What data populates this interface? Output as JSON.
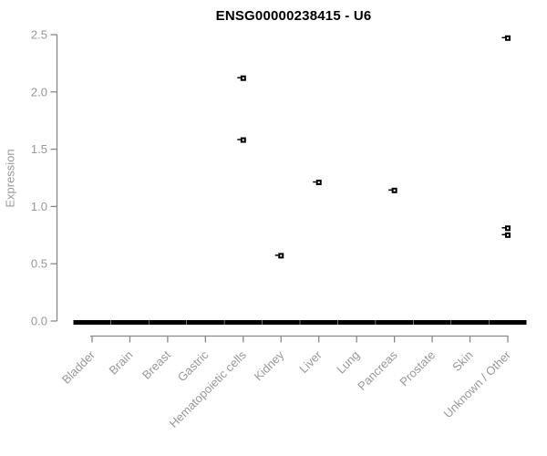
{
  "chart_data": {
    "type": "scatter",
    "title": "ENSG00000238415 - U6",
    "xlabel": "",
    "ylabel": "Expression",
    "ylim": [
      0.0,
      2.5
    ],
    "y_ticks": [
      "0.0",
      "0.5",
      "1.0",
      "1.5",
      "2.0",
      "2.5"
    ],
    "grid": "off",
    "legend": "none",
    "categories": [
      "Bladder",
      "Brain",
      "Breast",
      "Gastric",
      "Hematopoietic cells",
      "Kidney",
      "Liver",
      "Lung",
      "Pancreas",
      "Prostate",
      "Skin",
      "Unknown / Other"
    ],
    "series": [
      {
        "category": "Bladder",
        "zero_bar": true,
        "outliers": []
      },
      {
        "category": "Brain",
        "zero_bar": true,
        "outliers": []
      },
      {
        "category": "Breast",
        "zero_bar": true,
        "outliers": []
      },
      {
        "category": "Gastric",
        "zero_bar": true,
        "outliers": []
      },
      {
        "category": "Hematopoietic cells",
        "zero_bar": true,
        "outliers": [
          2.12,
          1.58
        ]
      },
      {
        "category": "Kidney",
        "zero_bar": true,
        "outliers": [
          0.57
        ]
      },
      {
        "category": "Liver",
        "zero_bar": true,
        "outliers": [
          1.21
        ]
      },
      {
        "category": "Lung",
        "zero_bar": true,
        "outliers": []
      },
      {
        "category": "Pancreas",
        "zero_bar": true,
        "outliers": [
          1.14
        ]
      },
      {
        "category": "Prostate",
        "zero_bar": true,
        "outliers": []
      },
      {
        "category": "Skin",
        "zero_bar": true,
        "outliers": []
      },
      {
        "category": "Unknown / Other",
        "zero_bar": true,
        "outliers": [
          2.47,
          0.81,
          0.75
        ]
      }
    ],
    "colors": {
      "title": "#000000",
      "axis": "#888888",
      "tick_label": "#989898",
      "marker": "#000000",
      "zero_bar": "#000000",
      "background": "#ffffff"
    }
  }
}
